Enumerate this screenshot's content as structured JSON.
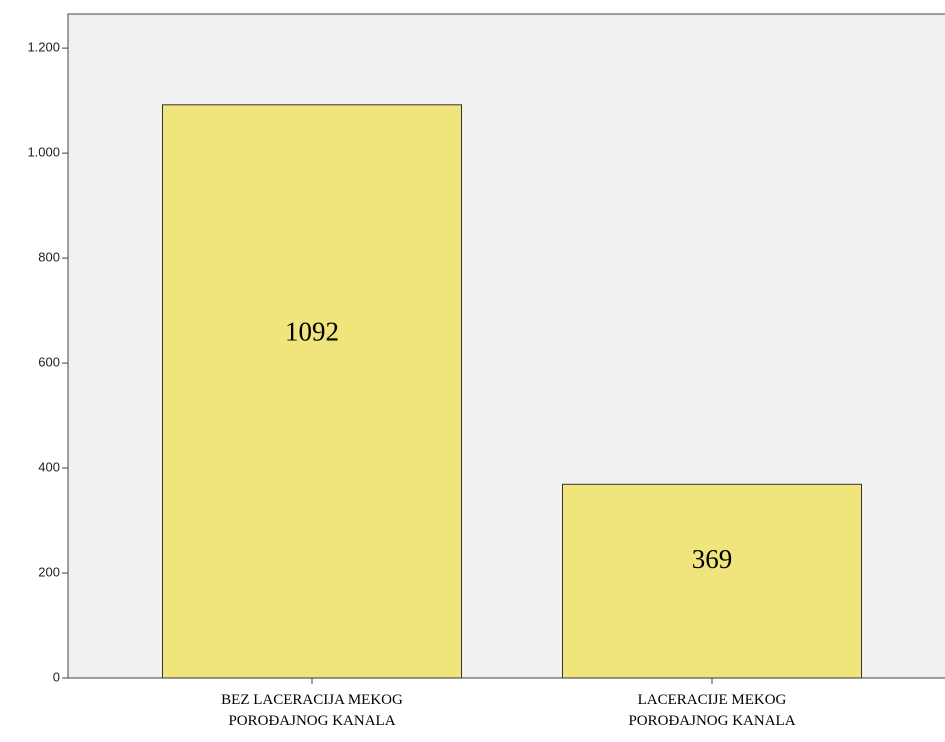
{
  "chart_data": {
    "type": "bar",
    "categories": [
      "BEZ LACERACIJA MEKOG POROĐAJNOG KANALA",
      "LACERACIJE MEKOG POROĐAJNOG KANALA"
    ],
    "values": [
      1092,
      369
    ],
    "color": "#f0e47c",
    "ylim": [
      0,
      1265
    ],
    "yticks": [
      0,
      200,
      400,
      600,
      800,
      {
        "value": 1000,
        "label": "1.000"
      },
      {
        "value": 1200,
        "label": "1.200"
      }
    ]
  }
}
